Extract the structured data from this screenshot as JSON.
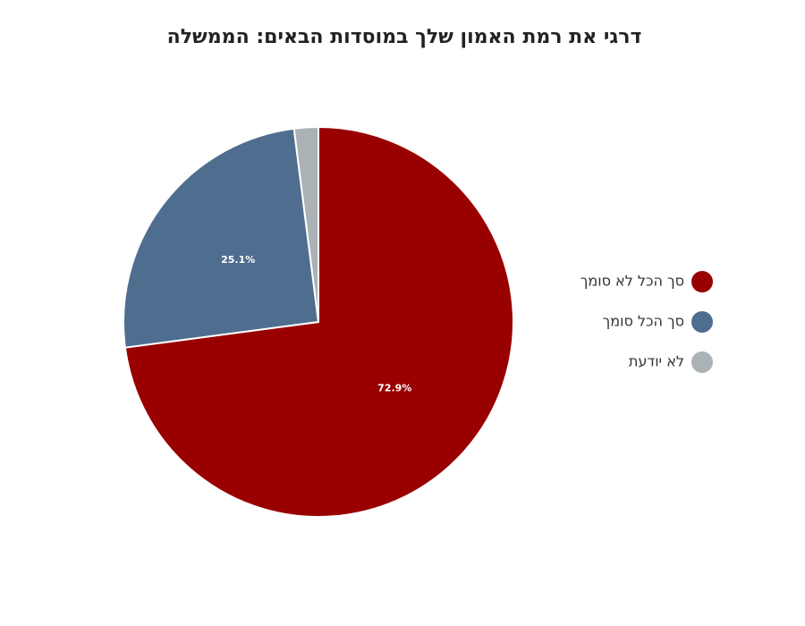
{
  "chart_data": {
    "type": "pie",
    "title": "דרגי את רמת האמון שלך במוסדות הבאים: הממשלה",
    "categories": [
      "סך הכל לא סומך",
      "סך הכל סומך",
      "לא יודעת"
    ],
    "values": [
      72.9,
      25.1,
      2.0
    ],
    "value_labels": [
      "72.9%",
      "25.1%",
      null
    ],
    "colors": [
      "#990000",
      "#4f6d8f",
      "#aab2b5"
    ],
    "legend": "right"
  }
}
